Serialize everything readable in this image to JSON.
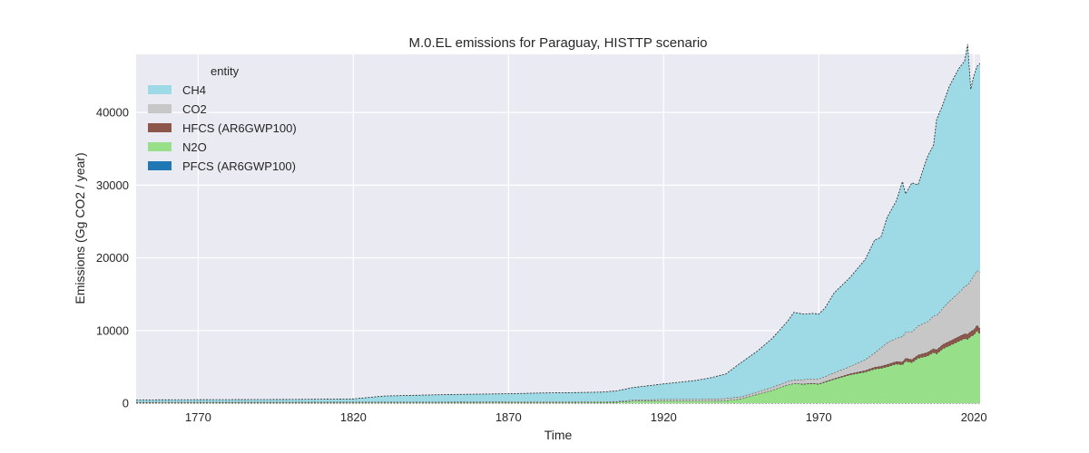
{
  "chart_data": {
    "type": "area",
    "stacked": true,
    "title": "M.0.EL emissions for Paraguay, HISTTP scenario",
    "xlabel": "Time",
    "ylabel": "Emissions (Gg CO2 / year)",
    "xlim": [
      1750,
      2022
    ],
    "ylim": [
      0,
      48000
    ],
    "x_ticks": [
      1770,
      1820,
      1870,
      1920,
      1970,
      2020
    ],
    "y_ticks": [
      0,
      10000,
      20000,
      30000,
      40000
    ],
    "grid": true,
    "legend_title": "entity",
    "legend_position": "top-left",
    "x": [
      1750,
      1800,
      1820,
      1830,
      1850,
      1870,
      1880,
      1890,
      1900,
      1905,
      1910,
      1920,
      1930,
      1935,
      1940,
      1945,
      1950,
      1955,
      1960,
      1962,
      1965,
      1968,
      1970,
      1972,
      1975,
      1980,
      1985,
      1988,
      1990,
      1992,
      1995,
      1997,
      1998,
      2000,
      2002,
      2005,
      2007,
      2008,
      2010,
      2012,
      2015,
      2017,
      2018,
      2019,
      2020,
      2021,
      2022
    ],
    "series": [
      {
        "name": "PFCS (AR6GWP100)",
        "color": "#1f77b4",
        "values": [
          0,
          0,
          0,
          0,
          0,
          0,
          0,
          0,
          0,
          0,
          0,
          0,
          0,
          0,
          0,
          0,
          0,
          0,
          0,
          0,
          0,
          0,
          0,
          0,
          0,
          0,
          0,
          0,
          0,
          0,
          0,
          0,
          0,
          0,
          0,
          0,
          0,
          0,
          0,
          0,
          0,
          0,
          0,
          0,
          0,
          0,
          0
        ]
      },
      {
        "name": "N2O",
        "color": "#98df8a",
        "values": [
          50,
          60,
          80,
          80,
          80,
          100,
          100,
          100,
          120,
          150,
          300,
          350,
          300,
          300,
          350,
          600,
          1200,
          1800,
          2500,
          2700,
          2600,
          2700,
          2600,
          2900,
          3300,
          3900,
          4300,
          4700,
          4800,
          5000,
          5400,
          5300,
          5800,
          5600,
          6200,
          6500,
          7000,
          6800,
          7500,
          7900,
          8500,
          8900,
          8800,
          9200,
          9400,
          10000,
          9500
        ]
      },
      {
        "name": "HFCS (AR6GWP100)",
        "color": "#8c564b",
        "values": [
          0,
          0,
          0,
          0,
          0,
          0,
          0,
          0,
          0,
          0,
          0,
          0,
          0,
          0,
          0,
          0,
          0,
          0,
          0,
          0,
          50,
          50,
          60,
          80,
          100,
          150,
          200,
          250,
          300,
          320,
          350,
          380,
          400,
          420,
          450,
          500,
          520,
          550,
          600,
          620,
          650,
          680,
          700,
          700,
          720,
          750,
          750
        ]
      },
      {
        "name": "CO2",
        "color": "#c7c7c7",
        "values": [
          100,
          100,
          100,
          100,
          100,
          100,
          100,
          100,
          100,
          100,
          150,
          200,
          250,
          280,
          300,
          300,
          350,
          400,
          500,
          500,
          600,
          600,
          700,
          700,
          800,
          1000,
          1500,
          2000,
          2500,
          3000,
          3200,
          3500,
          3600,
          3800,
          4000,
          4200,
          4500,
          4700,
          5000,
          5500,
          6000,
          6500,
          6800,
          7000,
          7500,
          7500,
          7800
        ]
      },
      {
        "name": "CH4",
        "color": "#9edae5",
        "values": [
          300,
          350,
          400,
          800,
          1000,
          1100,
          1200,
          1250,
          1300,
          1450,
          1700,
          2100,
          2550,
          2900,
          3350,
          4700,
          5550,
          6700,
          8300,
          9300,
          9000,
          9000,
          8900,
          9400,
          11000,
          12200,
          13800,
          15500,
          15200,
          17200,
          18900,
          21300,
          19000,
          20500,
          19400,
          22700,
          23500,
          27000,
          28000,
          29500,
          30800,
          31000,
          33100,
          26300,
          27500,
          28100,
          28700
        ]
      }
    ]
  }
}
